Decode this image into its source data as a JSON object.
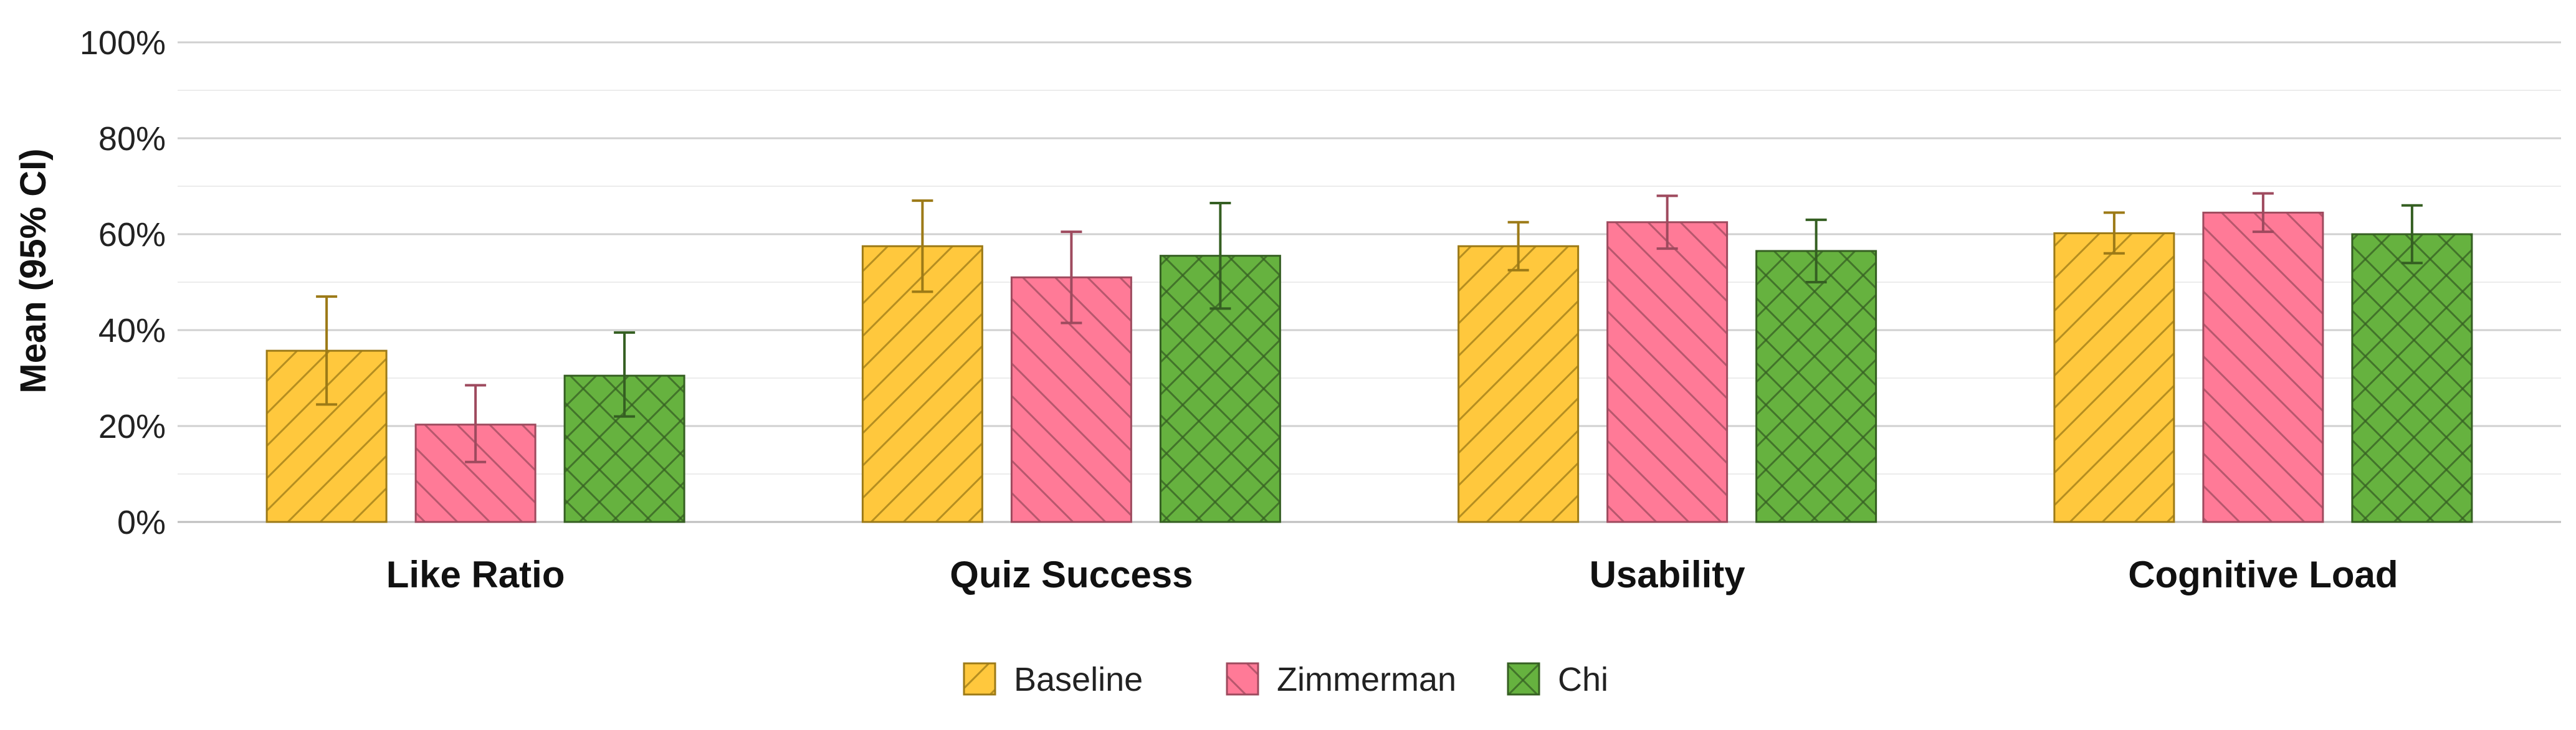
{
  "chart_data": {
    "type": "bar",
    "title": "",
    "xlabel": "",
    "ylabel": "Mean (95% CI)",
    "ylim": [
      0,
      100
    ],
    "yticks": [
      "0%",
      "20%",
      "40%",
      "60%",
      "80%",
      "100%"
    ],
    "grid": "horizontal",
    "legend_position": "bottom-center",
    "categories": [
      "Like Ratio",
      "Quiz Success",
      "Usability",
      "Cognitive Load"
    ],
    "series": [
      {
        "name": "Baseline",
        "color": "#FFC83D",
        "edge": "#9C7A17",
        "hatch": "diagonal-up",
        "values": [
          35.7,
          57.5,
          57.5,
          60.2
        ],
        "ci_low": [
          24.5,
          48.0,
          52.5,
          56.0
        ],
        "ci_high": [
          47.0,
          67.0,
          62.5,
          64.5
        ]
      },
      {
        "name": "Zimmerman",
        "color": "#FF7A97",
        "edge": "#9E4A5E",
        "hatch": "diagonal-down",
        "values": [
          20.3,
          51.0,
          62.5,
          64.5
        ],
        "ci_low": [
          12.5,
          41.5,
          57.0,
          60.5
        ],
        "ci_high": [
          28.5,
          60.5,
          68.0,
          68.5
        ]
      },
      {
        "name": "Chi",
        "color": "#66B23F",
        "edge": "#355F22",
        "hatch": "crosshatch",
        "values": [
          30.5,
          55.5,
          56.5,
          60.0
        ],
        "ci_low": [
          22.0,
          44.5,
          50.0,
          54.0
        ],
        "ci_high": [
          39.5,
          66.5,
          63.0,
          66.0
        ]
      }
    ]
  }
}
